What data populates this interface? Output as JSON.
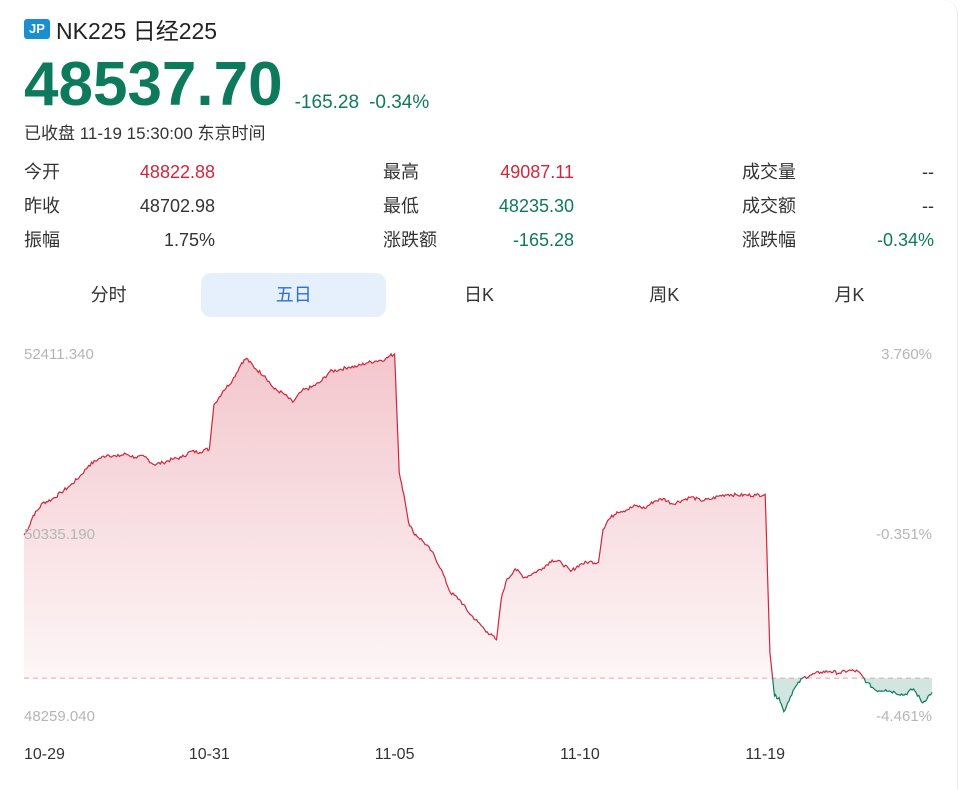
{
  "header": {
    "badge": "JP",
    "title": "NK225 日经225"
  },
  "quote": {
    "price": "48537.70",
    "change": "-165.28",
    "change_pct": "-0.34%",
    "status": "已收盘 11-19 15:30:00 东京时间"
  },
  "stats": [
    {
      "label": "今开",
      "value": "48822.88",
      "color": "red"
    },
    {
      "label": "最高",
      "value": "49087.11",
      "color": "red"
    },
    {
      "label": "成交量",
      "value": "--",
      "color": "dark"
    },
    {
      "label": "昨收",
      "value": "48702.98",
      "color": "dark"
    },
    {
      "label": "最低",
      "value": "48235.30",
      "color": "green"
    },
    {
      "label": "成交额",
      "value": "--",
      "color": "dark"
    },
    {
      "label": "振幅",
      "value": "1.75%",
      "color": "dark"
    },
    {
      "label": "涨跌额",
      "value": "-165.28",
      "color": "green"
    },
    {
      "label": "涨跌幅",
      "value": "-0.34%",
      "color": "green"
    }
  ],
  "tabs": [
    {
      "label": "分时",
      "active": false
    },
    {
      "label": "五日",
      "active": true
    },
    {
      "label": "日K",
      "active": false
    },
    {
      "label": "周K",
      "active": false
    },
    {
      "label": "月K",
      "active": false
    }
  ],
  "colors": {
    "up": "#d0263c",
    "down": "#0e7a5c",
    "accent": "#2d6fd6"
  },
  "chart_data": {
    "type": "line",
    "title": "",
    "xlabel": "",
    "ylabel": "",
    "baseline": 48702.98,
    "ylim": [
      48259.04,
      52411.34
    ],
    "y_ticks_left": [
      "52411.340",
      "50335.190",
      "48259.040"
    ],
    "y_ticks_right": [
      "3.760%",
      "-0.351%",
      "-4.461%"
    ],
    "x_tick_labels": [
      "10-29",
      "10-31",
      "11-05",
      "11-10",
      "11-19"
    ],
    "x_tick_index": [
      0,
      40,
      80,
      120,
      160
    ],
    "x_max_index": 196,
    "points": [
      [
        0,
        50335
      ],
      [
        1,
        50420
      ],
      [
        2,
        50560
      ],
      [
        3,
        50620
      ],
      [
        4,
        50700
      ],
      [
        6,
        50740
      ],
      [
        8,
        50820
      ],
      [
        10,
        50900
      ],
      [
        12,
        51000
      ],
      [
        14,
        51130
      ],
      [
        16,
        51200
      ],
      [
        18,
        51250
      ],
      [
        20,
        51230
      ],
      [
        22,
        51260
      ],
      [
        24,
        51220
      ],
      [
        26,
        51230
      ],
      [
        28,
        51140
      ],
      [
        30,
        51160
      ],
      [
        32,
        51200
      ],
      [
        34,
        51220
      ],
      [
        36,
        51290
      ],
      [
        38,
        51280
      ],
      [
        39,
        51310
      ],
      [
        40,
        51310
      ],
      [
        41,
        51820
      ],
      [
        43,
        51980
      ],
      [
        45,
        52100
      ],
      [
        47,
        52300
      ],
      [
        48,
        52350
      ],
      [
        50,
        52230
      ],
      [
        52,
        52150
      ],
      [
        54,
        52000
      ],
      [
        56,
        51950
      ],
      [
        58,
        51850
      ],
      [
        60,
        51980
      ],
      [
        62,
        52020
      ],
      [
        64,
        52080
      ],
      [
        66,
        52200
      ],
      [
        68,
        52220
      ],
      [
        70,
        52250
      ],
      [
        72,
        52260
      ],
      [
        74,
        52300
      ],
      [
        76,
        52320
      ],
      [
        78,
        52340
      ],
      [
        79,
        52380
      ],
      [
        80,
        52400
      ],
      [
        81,
        51050
      ],
      [
        82,
        50800
      ],
      [
        83,
        50480
      ],
      [
        84,
        50370
      ],
      [
        86,
        50270
      ],
      [
        88,
        50150
      ],
      [
        90,
        49950
      ],
      [
        92,
        49680
      ],
      [
        94,
        49600
      ],
      [
        96,
        49450
      ],
      [
        98,
        49340
      ],
      [
        100,
        49230
      ],
      [
        102,
        49140
      ],
      [
        103,
        49600
      ],
      [
        104,
        49800
      ],
      [
        106,
        49950
      ],
      [
        108,
        49850
      ],
      [
        110,
        49900
      ],
      [
        112,
        49960
      ],
      [
        114,
        50050
      ],
      [
        116,
        50020
      ],
      [
        118,
        49920
      ],
      [
        120,
        50000
      ],
      [
        122,
        50030
      ],
      [
        124,
        50020
      ],
      [
        125,
        50400
      ],
      [
        126,
        50500
      ],
      [
        128,
        50600
      ],
      [
        130,
        50620
      ],
      [
        132,
        50670
      ],
      [
        134,
        50640
      ],
      [
        136,
        50720
      ],
      [
        138,
        50750
      ],
      [
        140,
        50690
      ],
      [
        142,
        50730
      ],
      [
        144,
        50770
      ],
      [
        146,
        50730
      ],
      [
        148,
        50740
      ],
      [
        150,
        50780
      ],
      [
        152,
        50800
      ],
      [
        154,
        50790
      ],
      [
        156,
        50790
      ],
      [
        158,
        50790
      ],
      [
        160,
        50800
      ],
      [
        161,
        49000
      ],
      [
        162,
        48500
      ],
      [
        163,
        48480
      ],
      [
        164,
        48320
      ],
      [
        166,
        48560
      ],
      [
        168,
        48700
      ],
      [
        170,
        48740
      ],
      [
        172,
        48770
      ],
      [
        174,
        48780
      ],
      [
        176,
        48760
      ],
      [
        178,
        48790
      ],
      [
        180,
        48780
      ],
      [
        182,
        48650
      ],
      [
        184,
        48560
      ],
      [
        186,
        48570
      ],
      [
        188,
        48540
      ],
      [
        190,
        48510
      ],
      [
        192,
        48580
      ],
      [
        194,
        48420
      ],
      [
        196,
        48540
      ]
    ]
  }
}
